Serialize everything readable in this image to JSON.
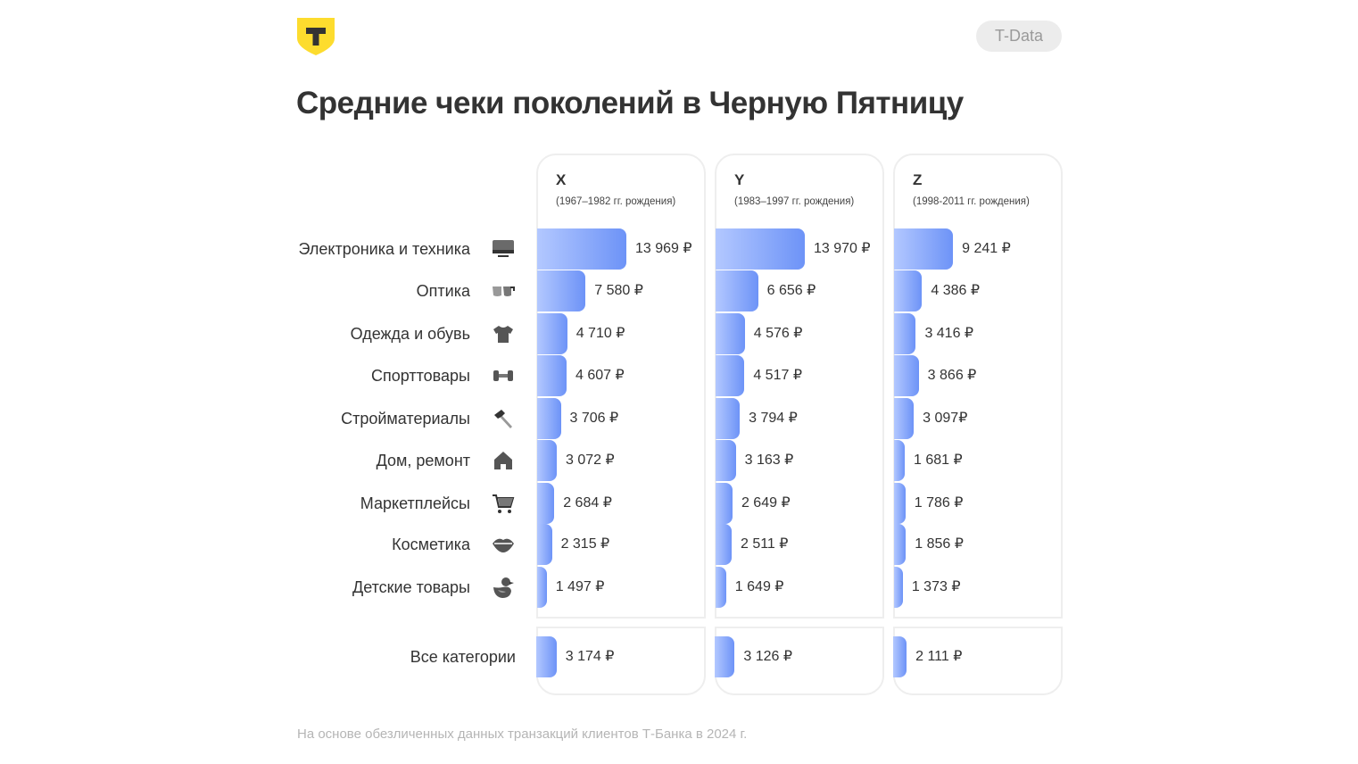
{
  "header": {
    "logo_letter": "Т",
    "badge": "T-Data",
    "title": "Средние чеки поколений в Черную Пятницу"
  },
  "chart_data": {
    "type": "bar",
    "orientation": "horizontal",
    "title": "Средние чеки поколений в Черную Пятницу",
    "unit": "₽",
    "categories": [
      "Электроника и техника",
      "Оптика",
      "Одежда и обувь",
      "Спорттовары",
      "Стройматериалы",
      "Дом, ремонт",
      "Маркетплейсы",
      "Косметика",
      "Детские товары"
    ],
    "category_icons": [
      "monitor-icon",
      "glasses-icon",
      "tshirt-icon",
      "dumbbell-icon",
      "hammer-icon",
      "house-icon",
      "cart-icon",
      "lips-icon",
      "duck-icon"
    ],
    "series": [
      {
        "name": "X",
        "subtitle": "(1967–1982 гг. рождения)",
        "values": [
          13969,
          7580,
          4710,
          4607,
          3706,
          3072,
          2684,
          2315,
          1497
        ],
        "labels": [
          "13 969 ₽",
          "7 580 ₽",
          "4 710 ₽",
          "4 607 ₽",
          "3 706 ₽",
          "3 072 ₽",
          "2 684 ₽",
          "2 315 ₽",
          "1 497 ₽"
        ],
        "total": 3174,
        "total_label": "3 174 ₽"
      },
      {
        "name": "Y",
        "subtitle": "(1983–1997 гг. рождения)",
        "values": [
          13970,
          6656,
          4576,
          4517,
          3794,
          3163,
          2649,
          2511,
          1649
        ],
        "labels": [
          "13 970 ₽",
          "6 656 ₽",
          "4 576 ₽",
          "4 517 ₽",
          "3 794 ₽",
          "3 163 ₽",
          "2 649 ₽",
          "2 511 ₽",
          "1 649 ₽"
        ],
        "total": 3126,
        "total_label": "3 126 ₽"
      },
      {
        "name": "Z",
        "subtitle": "(1998-2011 гг. рождения)",
        "values": [
          9241,
          4386,
          3416,
          3866,
          3097,
          1681,
          1786,
          1856,
          1373
        ],
        "labels": [
          "9 241 ₽",
          "4 386 ₽",
          "3 416 ₽",
          "3 866 ₽",
          "3 097₽",
          "1 681 ₽",
          "1 786 ₽",
          "1 856 ₽",
          "1 373 ₽"
        ],
        "total": 2111,
        "total_label": "2 111 ₽"
      }
    ],
    "total_label": "Все категории",
    "bar_color_start": "#b3c8ff",
    "bar_color_end": "#6d93f7"
  },
  "footnote": "На основе обезличенных данных транзакций клиентов Т-Банка в 2024 г."
}
